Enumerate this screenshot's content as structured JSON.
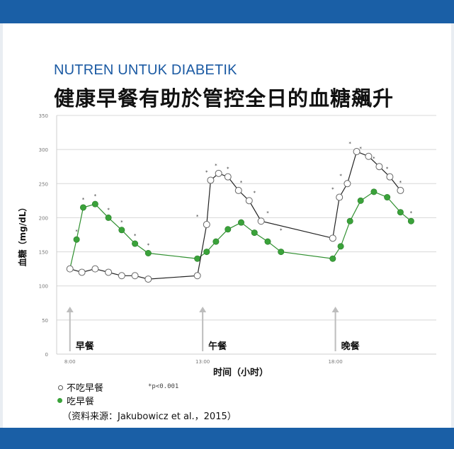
{
  "header": {
    "subtitle": "NUTREN UNTUK DIABETIK",
    "title": "健康早餐有助於管控全日的血糖飆升"
  },
  "colors": {
    "brand_bar": "#1a5fa6",
    "series_open": "#ffffff",
    "series_filled": "#3aa23a",
    "line_open": "#222222",
    "line_filled": "#2f8f2f"
  },
  "chart_data": {
    "type": "line",
    "xlabel": "时间（小时）",
    "ylabel": "血糖（mg/dL）",
    "ylim": [
      0,
      350
    ],
    "yticks": [
      0,
      50,
      100,
      150,
      200,
      250,
      300,
      350
    ],
    "xticks": [
      {
        "label": "8:00",
        "x": 8
      },
      {
        "label": "13:00",
        "x": 13
      },
      {
        "label": "18:00",
        "x": 18
      }
    ],
    "xlim": [
      7.5,
      21.8
    ],
    "grid": true,
    "meals": [
      {
        "label": "早餐",
        "x": 8
      },
      {
        "label": "午餐",
        "x": 13
      },
      {
        "label": "晚餐",
        "x": 18
      }
    ],
    "series": [
      {
        "name": "不吃早餐",
        "marker": "open",
        "points": [
          [
            8.0,
            125
          ],
          [
            8.45,
            120
          ],
          [
            8.95,
            125
          ],
          [
            9.45,
            120
          ],
          [
            9.95,
            115
          ],
          [
            10.45,
            115
          ],
          [
            10.95,
            110
          ],
          [
            12.8,
            115
          ],
          [
            13.15,
            190
          ],
          [
            13.3,
            255
          ],
          [
            13.6,
            265
          ],
          [
            13.95,
            260
          ],
          [
            14.35,
            240
          ],
          [
            14.75,
            225
          ],
          [
            15.2,
            195
          ],
          [
            17.9,
            170
          ],
          [
            18.15,
            230
          ],
          [
            18.45,
            250
          ],
          [
            18.8,
            297
          ],
          [
            19.25,
            290
          ],
          [
            19.65,
            275
          ],
          [
            20.05,
            260
          ],
          [
            20.45,
            240
          ]
        ]
      },
      {
        "name": "吃早餐",
        "marker": "filled",
        "points": [
          [
            8.0,
            125
          ],
          [
            8.25,
            168
          ],
          [
            8.5,
            215
          ],
          [
            8.95,
            220
          ],
          [
            9.45,
            200
          ],
          [
            9.95,
            182
          ],
          [
            10.45,
            162
          ],
          [
            10.95,
            148
          ],
          [
            12.8,
            140
          ],
          [
            13.15,
            150
          ],
          [
            13.5,
            165
          ],
          [
            13.95,
            183
          ],
          [
            14.45,
            193
          ],
          [
            14.95,
            178
          ],
          [
            15.45,
            165
          ],
          [
            15.95,
            150
          ],
          [
            17.9,
            140
          ],
          [
            18.2,
            158
          ],
          [
            18.55,
            195
          ],
          [
            18.95,
            225
          ],
          [
            19.45,
            238
          ],
          [
            19.95,
            230
          ],
          [
            20.45,
            208
          ],
          [
            20.85,
            195
          ]
        ]
      }
    ],
    "annotations": [
      "*p<0.001"
    ]
  },
  "legend": {
    "items": [
      "不吃早餐",
      "吃早餐"
    ],
    "pvalue": "*p<0.001"
  },
  "source": "（资料来源：Jakubowicz et al.，2015）"
}
